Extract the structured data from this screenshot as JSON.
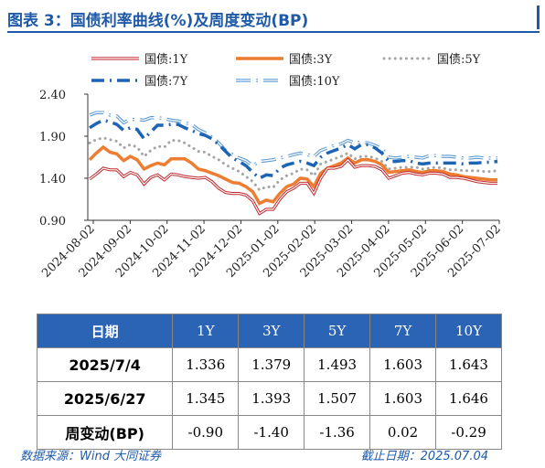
{
  "header": {
    "title": "图表 3：国债利率曲线(%)及周度变动(BP)"
  },
  "chart_data": {
    "type": "line",
    "y_ticks": [
      "2.40",
      "1.90",
      "1.40",
      "0.90"
    ],
    "ylim": [
      0.9,
      2.4
    ],
    "x_ticks": [
      "2024-08-02",
      "2024-09-02",
      "2024-10-02",
      "2024-11-02",
      "2024-12-02",
      "2025-01-02",
      "2025-02-02",
      "2025-03-02",
      "2025-04-02",
      "2025-05-02",
      "2025-06-02",
      "2025-07-02"
    ],
    "legend_placement": "top-left",
    "series": [
      {
        "name": "国债:1Y",
        "color": "#c0282d",
        "style": "double-red",
        "values": [
          1.39,
          1.45,
          1.52,
          1.5,
          1.5,
          1.42,
          1.47,
          1.44,
          1.33,
          1.41,
          1.44,
          1.38,
          1.45,
          1.44,
          1.42,
          1.41,
          1.4,
          1.41,
          1.36,
          1.28,
          1.23,
          1.22,
          1.22,
          1.2,
          1.13,
          0.98,
          1.03,
          1.03,
          1.15,
          1.24,
          1.28,
          1.34,
          1.34,
          1.22,
          1.4,
          1.52,
          1.52,
          1.54,
          1.62,
          1.53,
          1.55,
          1.55,
          1.54,
          1.5,
          1.4,
          1.43,
          1.46,
          1.47,
          1.45,
          1.44,
          1.46,
          1.46,
          1.45,
          1.41,
          1.41,
          1.4,
          1.38,
          1.36,
          1.35,
          1.34,
          1.34
        ]
      },
      {
        "name": "国债:3Y",
        "color": "#ed7d31",
        "style": "thick",
        "values": [
          1.62,
          1.7,
          1.77,
          1.71,
          1.69,
          1.61,
          1.66,
          1.62,
          1.51,
          1.55,
          1.58,
          1.56,
          1.63,
          1.63,
          1.63,
          1.58,
          1.51,
          1.49,
          1.46,
          1.43,
          1.39,
          1.35,
          1.34,
          1.3,
          1.24,
          1.1,
          1.14,
          1.12,
          1.22,
          1.3,
          1.33,
          1.4,
          1.39,
          1.3,
          1.46,
          1.52,
          1.55,
          1.58,
          1.64,
          1.58,
          1.62,
          1.62,
          1.6,
          1.56,
          1.47,
          1.48,
          1.49,
          1.5,
          1.48,
          1.47,
          1.49,
          1.49,
          1.48,
          1.45,
          1.44,
          1.42,
          1.41,
          1.4,
          1.39,
          1.38,
          1.38
        ]
      },
      {
        "name": "国债:5Y",
        "color": "#a5a5a5",
        "style": "dotted",
        "values": [
          1.82,
          1.86,
          1.88,
          1.86,
          1.84,
          1.76,
          1.8,
          1.77,
          1.66,
          1.73,
          1.78,
          1.77,
          1.85,
          1.85,
          1.82,
          1.77,
          1.72,
          1.71,
          1.66,
          1.62,
          1.56,
          1.52,
          1.48,
          1.42,
          1.36,
          1.26,
          1.3,
          1.29,
          1.38,
          1.43,
          1.46,
          1.51,
          1.5,
          1.43,
          1.57,
          1.6,
          1.63,
          1.66,
          1.7,
          1.63,
          1.66,
          1.66,
          1.64,
          1.6,
          1.51,
          1.52,
          1.53,
          1.53,
          1.53,
          1.51,
          1.52,
          1.53,
          1.52,
          1.5,
          1.5,
          1.49,
          1.49,
          1.49,
          1.48,
          1.48,
          1.49
        ]
      },
      {
        "name": "国债:7Y",
        "color": "#1e64b4",
        "style": "dashdot",
        "values": [
          2.0,
          2.05,
          2.09,
          2.07,
          2.04,
          1.97,
          2.0,
          1.98,
          1.87,
          1.95,
          2.03,
          2.03,
          2.04,
          2.04,
          2.0,
          1.97,
          1.93,
          1.91,
          1.87,
          1.8,
          1.72,
          1.64,
          1.6,
          1.55,
          1.47,
          1.4,
          1.44,
          1.43,
          1.52,
          1.56,
          1.58,
          1.6,
          1.58,
          1.55,
          1.65,
          1.7,
          1.73,
          1.76,
          1.8,
          1.75,
          1.8,
          1.8,
          1.76,
          1.7,
          1.6,
          1.6,
          1.61,
          1.61,
          1.58,
          1.57,
          1.58,
          1.58,
          1.58,
          1.58,
          1.58,
          1.57,
          1.58,
          1.58,
          1.59,
          1.59,
          1.6
        ]
      },
      {
        "name": "国债:10Y",
        "color": "#5b9bd5",
        "style": "double-blue",
        "values": [
          2.15,
          2.18,
          2.18,
          2.15,
          2.14,
          2.06,
          2.1,
          2.1,
          2.09,
          2.12,
          2.12,
          2.11,
          2.09,
          2.08,
          2.06,
          2.04,
          1.98,
          1.94,
          1.89,
          1.82,
          1.73,
          1.68,
          1.64,
          1.61,
          1.55,
          1.6,
          1.61,
          1.62,
          1.64,
          1.66,
          1.68,
          1.7,
          1.68,
          1.66,
          1.73,
          1.76,
          1.79,
          1.81,
          1.85,
          1.82,
          1.83,
          1.82,
          1.79,
          1.75,
          1.65,
          1.64,
          1.65,
          1.66,
          1.65,
          1.64,
          1.67,
          1.67,
          1.66,
          1.66,
          1.65,
          1.64,
          1.64,
          1.65,
          1.64,
          1.64,
          1.64
        ]
      }
    ]
  },
  "table": {
    "header": [
      "日期",
      "1Y",
      "3Y",
      "5Y",
      "7Y",
      "10Y"
    ],
    "rows": [
      [
        "2025/7/4",
        "1.336",
        "1.379",
        "1.493",
        "1.603",
        "1.643"
      ],
      [
        "2025/6/27",
        "1.345",
        "1.393",
        "1.507",
        "1.603",
        "1.646"
      ],
      [
        "周变动(BP)",
        "-0.90",
        "-1.40",
        "-1.36",
        "0.02",
        "-0.29"
      ]
    ]
  },
  "footer": {
    "source": "数据来源：Wind 大同证券",
    "date": "截止日期：2025.07.04"
  }
}
